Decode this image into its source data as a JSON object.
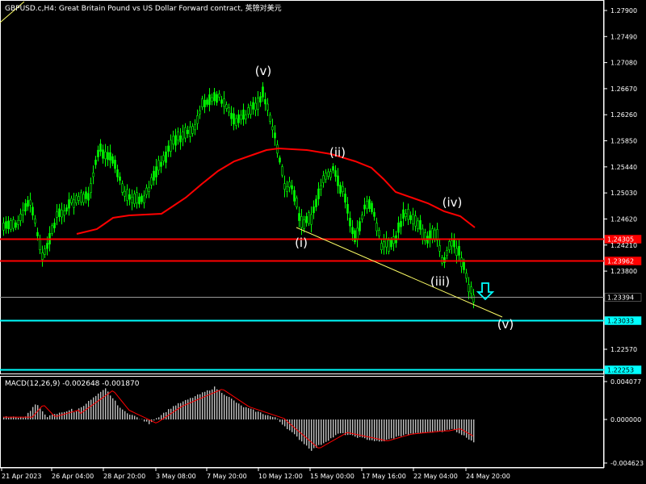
{
  "header": {
    "title": "GBPUSD.c,H4:  Great Britain Pound vs US Dollar Forward contract, 英镑对美元"
  },
  "colors": {
    "background": "#000000",
    "candle": "#00ff00",
    "ma": "#ff0000",
    "resistance": "#ff0000",
    "support": "#00ffff",
    "trendline": "#ffff66",
    "current": "#9a9a9a",
    "macd_hist": "#c0c0c0",
    "macd_signal": "#ff0000",
    "axis_text": "#ffffff",
    "arrow": "#00ffff"
  },
  "wave_labels": [
    "(v)",
    "(ii)",
    "(i)",
    "(iv)",
    "(iii)",
    "(v)"
  ],
  "arrow_icon": "down-arrow-icon",
  "price_axis": {
    "ticks": [
      "1.27900",
      "1.27490",
      "1.27080",
      "1.26670",
      "1.26260",
      "1.25850",
      "1.25440",
      "1.25030",
      "1.24620",
      "1.24210",
      "1.23800",
      "1.22570"
    ],
    "levels": [
      {
        "label": "1.24305",
        "kind": "resistance",
        "price": 1.24305
      },
      {
        "label": "1.23962",
        "kind": "resistance",
        "price": 1.23962
      },
      {
        "label": "1.23394",
        "kind": "current",
        "price": 1.23394
      },
      {
        "label": "1.23033",
        "kind": "support",
        "price": 1.23033
      },
      {
        "label": "1.22253",
        "kind": "support",
        "price": 1.22253
      }
    ]
  },
  "macd": {
    "title": "MACD(12,26,9) -0.002648 -0.001870",
    "ticks": [
      "0.004077",
      "0.000000",
      "-0.004623"
    ]
  },
  "time_axis": {
    "labels": [
      "21 Apr 2023",
      "26 Apr 04:00",
      "28 Apr 20:00",
      "3 May 08:00",
      "7 May 20:00",
      "10 May 12:00",
      "15 May 00:00",
      "17 May 16:00",
      "22 May 04:00",
      "24 May 20:00"
    ]
  }
}
